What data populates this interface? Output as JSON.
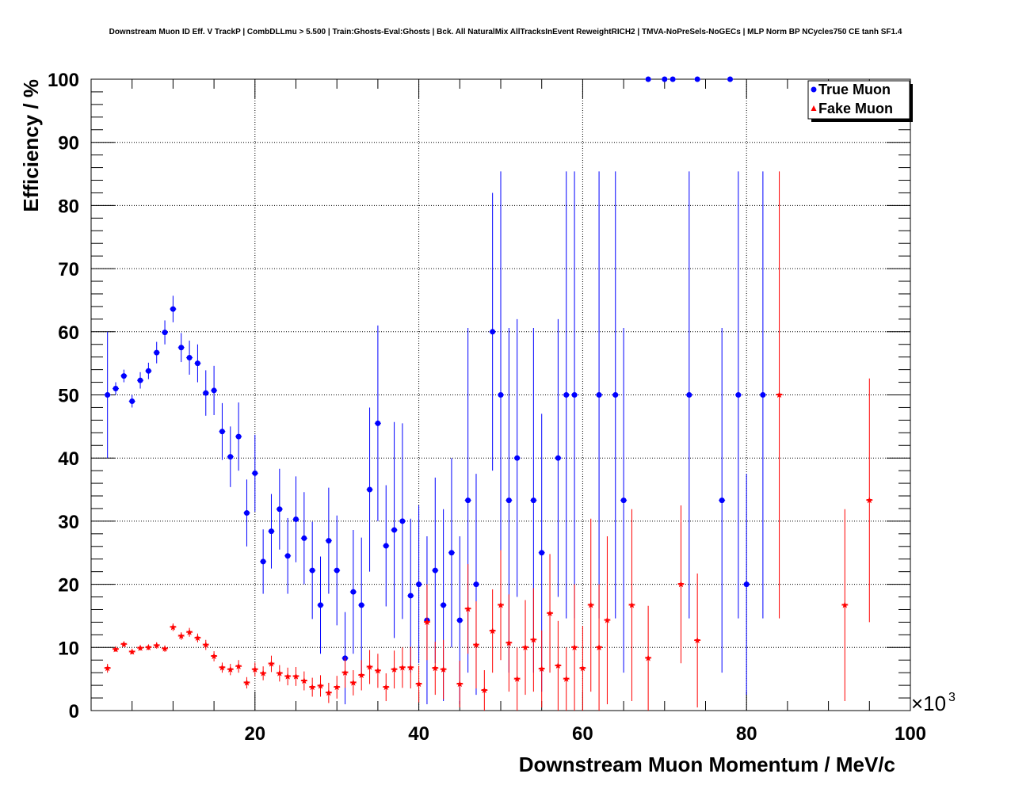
{
  "chart_data": {
    "type": "scatter",
    "title": "Downstream Muon ID Eff. V TrackP | CombDLLmu > 5.500 | Train:Ghosts-Eval:Ghosts | Bck. All NaturalMix AllTracksInEvent ReweightRICH2 | TMVA-NoPreSels-NoGECs | MLP Norm BP NCycles750 CE tanh SF1.4",
    "xlabel": "Downstream Muon Momentum / MeV/c",
    "ylabel": "Efficiency / %",
    "x_multiplier": "×10",
    "x_multiplier_exp": "3",
    "xlim": [
      0,
      100
    ],
    "ylim": [
      0,
      100
    ],
    "x_ticks": [
      "20",
      "40",
      "60",
      "80",
      "100"
    ],
    "y_ticks": [
      "0",
      "10",
      "20",
      "30",
      "40",
      "50",
      "60",
      "70",
      "80",
      "90",
      "100"
    ],
    "grid": true,
    "legend_position": "top-right",
    "series": [
      {
        "name": "True Muon",
        "color": "#0000ff",
        "marker": "circle",
        "points": [
          {
            "x": 2.0,
            "y": 50.0,
            "lo": 40.0,
            "hi": 60.0
          },
          {
            "x": 3.0,
            "y": 51.0,
            "lo": 50.0,
            "hi": 52.0
          },
          {
            "x": 4.0,
            "y": 53.0,
            "lo": 52.0,
            "hi": 54.0
          },
          {
            "x": 5.0,
            "y": 49.0,
            "lo": 48.0,
            "hi": 50.0
          },
          {
            "x": 6.0,
            "y": 52.3,
            "lo": 51.0,
            "hi": 53.6
          },
          {
            "x": 7.0,
            "y": 53.8,
            "lo": 52.5,
            "hi": 55.1
          },
          {
            "x": 8.0,
            "y": 56.7,
            "lo": 55.0,
            "hi": 58.4
          },
          {
            "x": 9.0,
            "y": 59.9,
            "lo": 58.0,
            "hi": 61.8
          },
          {
            "x": 10.0,
            "y": 63.6,
            "lo": 61.5,
            "hi": 65.7
          },
          {
            "x": 11.0,
            "y": 57.5,
            "lo": 55.2,
            "hi": 59.8
          },
          {
            "x": 12.0,
            "y": 55.9,
            "lo": 53.2,
            "hi": 58.6
          },
          {
            "x": 13.0,
            "y": 55.0,
            "lo": 52.0,
            "hi": 58.0
          },
          {
            "x": 14.0,
            "y": 50.3,
            "lo": 46.7,
            "hi": 53.9
          },
          {
            "x": 15.0,
            "y": 50.7,
            "lo": 46.8,
            "hi": 54.6
          },
          {
            "x": 16.0,
            "y": 44.2,
            "lo": 39.7,
            "hi": 48.7
          },
          {
            "x": 17.0,
            "y": 40.2,
            "lo": 35.4,
            "hi": 45.0
          },
          {
            "x": 18.0,
            "y": 43.4,
            "lo": 38.0,
            "hi": 48.8
          },
          {
            "x": 19.0,
            "y": 31.3,
            "lo": 26.0,
            "hi": 36.6
          },
          {
            "x": 20.0,
            "y": 37.6,
            "lo": 31.5,
            "hi": 43.7
          },
          {
            "x": 21.0,
            "y": 23.6,
            "lo": 18.5,
            "hi": 28.7
          },
          {
            "x": 22.0,
            "y": 28.4,
            "lo": 22.5,
            "hi": 34.3
          },
          {
            "x": 23.0,
            "y": 31.9,
            "lo": 25.5,
            "hi": 38.3
          },
          {
            "x": 24.0,
            "y": 24.5,
            "lo": 18.5,
            "hi": 30.5
          },
          {
            "x": 25.0,
            "y": 30.3,
            "lo": 23.5,
            "hi": 37.1
          },
          {
            "x": 26.0,
            "y": 27.3,
            "lo": 20.0,
            "hi": 34.6
          },
          {
            "x": 27.0,
            "y": 22.2,
            "lo": 14.5,
            "hi": 29.9
          },
          {
            "x": 28.0,
            "y": 16.7,
            "lo": 9.0,
            "hi": 24.4
          },
          {
            "x": 29.0,
            "y": 26.9,
            "lo": 18.5,
            "hi": 35.3
          },
          {
            "x": 30.0,
            "y": 22.2,
            "lo": 13.5,
            "hi": 30.9
          },
          {
            "x": 31.0,
            "y": 8.3,
            "lo": 1.0,
            "hi": 15.6
          },
          {
            "x": 32.0,
            "y": 18.8,
            "lo": 9.0,
            "hi": 28.6
          },
          {
            "x": 33.0,
            "y": 16.7,
            "lo": 6.0,
            "hi": 27.4
          },
          {
            "x": 34.0,
            "y": 35.0,
            "lo": 22.0,
            "hi": 48.0
          },
          {
            "x": 35.0,
            "y": 45.5,
            "lo": 30.0,
            "hi": 61.0
          },
          {
            "x": 36.0,
            "y": 26.1,
            "lo": 16.5,
            "hi": 35.7
          },
          {
            "x": 37.0,
            "y": 28.6,
            "lo": 11.5,
            "hi": 45.7
          },
          {
            "x": 38.0,
            "y": 30.0,
            "lo": 14.5,
            "hi": 45.5
          },
          {
            "x": 39.0,
            "y": 18.2,
            "lo": 6.0,
            "hi": 30.4
          },
          {
            "x": 40.0,
            "y": 20.0,
            "lo": 7.5,
            "hi": 32.5
          },
          {
            "x": 41.0,
            "y": 14.3,
            "lo": 1.0,
            "hi": 27.6
          },
          {
            "x": 42.0,
            "y": 22.2,
            "lo": 7.5,
            "hi": 36.9
          },
          {
            "x": 43.0,
            "y": 16.7,
            "lo": 1.5,
            "hi": 31.9
          },
          {
            "x": 44.0,
            "y": 25.0,
            "lo": 10.0,
            "hi": 40.0
          },
          {
            "x": 45.0,
            "y": 14.3,
            "lo": 1.0,
            "hi": 27.6
          },
          {
            "x": 46.0,
            "y": 33.3,
            "lo": 6.0,
            "hi": 60.6
          },
          {
            "x": 47.0,
            "y": 20.0,
            "lo": 2.5,
            "hi": 37.5
          },
          {
            "x": 49.0,
            "y": 60.0,
            "lo": 38.0,
            "hi": 82.0
          },
          {
            "x": 50.0,
            "y": 50.0,
            "lo": 14.6,
            "hi": 85.4
          },
          {
            "x": 51.0,
            "y": 33.3,
            "lo": 6.0,
            "hi": 60.6
          },
          {
            "x": 52.0,
            "y": 40.0,
            "lo": 18.0,
            "hi": 62.0
          },
          {
            "x": 54.0,
            "y": 33.3,
            "lo": 6.0,
            "hi": 60.6
          },
          {
            "x": 55.0,
            "y": 25.0,
            "lo": 3.0,
            "hi": 47.0
          },
          {
            "x": 57.0,
            "y": 40.0,
            "lo": 18.0,
            "hi": 62.0
          },
          {
            "x": 58.0,
            "y": 50.0,
            "lo": 14.6,
            "hi": 85.4
          },
          {
            "x": 59.0,
            "y": 50.0,
            "lo": 14.6,
            "hi": 85.4
          },
          {
            "x": 62.0,
            "y": 50.0,
            "lo": 14.6,
            "hi": 85.4
          },
          {
            "x": 64.0,
            "y": 50.0,
            "lo": 14.6,
            "hi": 85.4
          },
          {
            "x": 65.0,
            "y": 33.3,
            "lo": 6.0,
            "hi": 60.6
          },
          {
            "x": 68.0,
            "y": 100.0,
            "lo": 100.0,
            "hi": 100.0
          },
          {
            "x": 70.0,
            "y": 100.0,
            "lo": 100.0,
            "hi": 100.0
          },
          {
            "x": 71.0,
            "y": 100.0,
            "lo": 100.0,
            "hi": 100.0
          },
          {
            "x": 73.0,
            "y": 50.0,
            "lo": 14.6,
            "hi": 85.4
          },
          {
            "x": 74.0,
            "y": 100.0,
            "lo": 100.0,
            "hi": 100.0
          },
          {
            "x": 77.0,
            "y": 33.3,
            "lo": 6.0,
            "hi": 60.6
          },
          {
            "x": 78.0,
            "y": 100.0,
            "lo": 100.0,
            "hi": 100.0
          },
          {
            "x": 79.0,
            "y": 50.0,
            "lo": 14.6,
            "hi": 85.4
          },
          {
            "x": 80.0,
            "y": 20.0,
            "lo": 2.5,
            "hi": 37.5
          },
          {
            "x": 82.0,
            "y": 50.0,
            "lo": 14.6,
            "hi": 85.4
          }
        ]
      },
      {
        "name": "Fake Muon",
        "color": "#ff0000",
        "marker": "star",
        "points": [
          {
            "x": 2.0,
            "y": 6.7,
            "lo": 6.0,
            "hi": 7.4
          },
          {
            "x": 3.0,
            "y": 9.7,
            "lo": 9.3,
            "hi": 10.1
          },
          {
            "x": 4.0,
            "y": 10.5,
            "lo": 10.1,
            "hi": 10.9
          },
          {
            "x": 5.0,
            "y": 9.3,
            "lo": 8.9,
            "hi": 9.7
          },
          {
            "x": 6.0,
            "y": 9.9,
            "lo": 9.5,
            "hi": 10.3
          },
          {
            "x": 7.0,
            "y": 10.0,
            "lo": 9.6,
            "hi": 10.4
          },
          {
            "x": 8.0,
            "y": 10.3,
            "lo": 9.8,
            "hi": 10.8
          },
          {
            "x": 9.0,
            "y": 9.8,
            "lo": 9.3,
            "hi": 10.3
          },
          {
            "x": 10.0,
            "y": 13.2,
            "lo": 12.6,
            "hi": 13.8
          },
          {
            "x": 11.0,
            "y": 11.8,
            "lo": 11.2,
            "hi": 12.4
          },
          {
            "x": 12.0,
            "y": 12.4,
            "lo": 11.7,
            "hi": 13.1
          },
          {
            "x": 13.0,
            "y": 11.5,
            "lo": 10.8,
            "hi": 12.2
          },
          {
            "x": 14.0,
            "y": 10.4,
            "lo": 9.6,
            "hi": 11.2
          },
          {
            "x": 15.0,
            "y": 8.6,
            "lo": 7.8,
            "hi": 9.4
          },
          {
            "x": 16.0,
            "y": 6.8,
            "lo": 6.0,
            "hi": 7.6
          },
          {
            "x": 17.0,
            "y": 6.5,
            "lo": 5.6,
            "hi": 7.4
          },
          {
            "x": 18.0,
            "y": 7.0,
            "lo": 6.0,
            "hi": 8.0
          },
          {
            "x": 19.0,
            "y": 4.4,
            "lo": 3.5,
            "hi": 5.3
          },
          {
            "x": 20.0,
            "y": 6.5,
            "lo": 5.4,
            "hi": 7.6
          },
          {
            "x": 21.0,
            "y": 5.9,
            "lo": 4.8,
            "hi": 7.0
          },
          {
            "x": 22.0,
            "y": 7.4,
            "lo": 6.1,
            "hi": 8.7
          },
          {
            "x": 23.0,
            "y": 5.9,
            "lo": 4.6,
            "hi": 7.2
          },
          {
            "x": 24.0,
            "y": 5.4,
            "lo": 4.0,
            "hi": 6.8
          },
          {
            "x": 25.0,
            "y": 5.4,
            "lo": 3.9,
            "hi": 6.9
          },
          {
            "x": 26.0,
            "y": 4.7,
            "lo": 3.2,
            "hi": 6.2
          },
          {
            "x": 27.0,
            "y": 3.7,
            "lo": 2.2,
            "hi": 5.2
          },
          {
            "x": 28.0,
            "y": 3.9,
            "lo": 2.2,
            "hi": 5.6
          },
          {
            "x": 29.0,
            "y": 2.8,
            "lo": 1.2,
            "hi": 4.4
          },
          {
            "x": 30.0,
            "y": 3.7,
            "lo": 1.9,
            "hi": 5.5
          },
          {
            "x": 31.0,
            "y": 6.0,
            "lo": 3.6,
            "hi": 8.4
          },
          {
            "x": 32.0,
            "y": 4.4,
            "lo": 2.4,
            "hi": 6.4
          },
          {
            "x": 33.0,
            "y": 5.6,
            "lo": 3.2,
            "hi": 8.0
          },
          {
            "x": 34.0,
            "y": 6.9,
            "lo": 4.2,
            "hi": 9.6
          },
          {
            "x": 35.0,
            "y": 6.3,
            "lo": 3.6,
            "hi": 9.0
          },
          {
            "x": 36.0,
            "y": 3.7,
            "lo": 1.5,
            "hi": 5.9
          },
          {
            "x": 37.0,
            "y": 6.5,
            "lo": 3.5,
            "hi": 9.5
          },
          {
            "x": 38.0,
            "y": 6.8,
            "lo": 3.6,
            "hi": 10.0
          },
          {
            "x": 39.0,
            "y": 6.8,
            "lo": 3.5,
            "hi": 10.1
          },
          {
            "x": 40.0,
            "y": 4.2,
            "lo": 1.3,
            "hi": 7.1
          },
          {
            "x": 41.0,
            "y": 14.0,
            "lo": 8.0,
            "hi": 20.0
          },
          {
            "x": 42.0,
            "y": 6.7,
            "lo": 2.5,
            "hi": 10.9
          },
          {
            "x": 43.0,
            "y": 6.5,
            "lo": 1.8,
            "hi": 11.2
          },
          {
            "x": 45.0,
            "y": 4.2,
            "lo": 0.5,
            "hi": 7.9
          },
          {
            "x": 46.0,
            "y": 16.1,
            "lo": 9.0,
            "hi": 23.2
          },
          {
            "x": 47.0,
            "y": 10.4,
            "lo": 3.5,
            "hi": 17.3
          },
          {
            "x": 48.0,
            "y": 3.2,
            "lo": 0.0,
            "hi": 6.4
          },
          {
            "x": 49.0,
            "y": 12.6,
            "lo": 6.0,
            "hi": 19.2
          },
          {
            "x": 50.0,
            "y": 16.7,
            "lo": 8.0,
            "hi": 25.4
          },
          {
            "x": 51.0,
            "y": 10.7,
            "lo": 3.0,
            "hi": 18.4
          },
          {
            "x": 52.0,
            "y": 5.0,
            "lo": 0.0,
            "hi": 10.0
          },
          {
            "x": 53.0,
            "y": 10.0,
            "lo": 2.5,
            "hi": 17.5
          },
          {
            "x": 54.0,
            "y": 11.2,
            "lo": 3.0,
            "hi": 19.4
          },
          {
            "x": 55.0,
            "y": 6.6,
            "lo": 0.5,
            "hi": 12.7
          },
          {
            "x": 56.0,
            "y": 15.4,
            "lo": 6.0,
            "hi": 24.8
          },
          {
            "x": 57.0,
            "y": 7.1,
            "lo": 0.0,
            "hi": 14.2
          },
          {
            "x": 58.0,
            "y": 5.0,
            "lo": 0.0,
            "hi": 10.0
          },
          {
            "x": 59.0,
            "y": 10.0,
            "lo": 0.0,
            "hi": 20.0
          },
          {
            "x": 60.0,
            "y": 6.7,
            "lo": 0.0,
            "hi": 13.4
          },
          {
            "x": 61.0,
            "y": 16.7,
            "lo": 3.0,
            "hi": 30.4
          },
          {
            "x": 62.0,
            "y": 10.0,
            "lo": 0.0,
            "hi": 20.0
          },
          {
            "x": 63.0,
            "y": 14.3,
            "lo": 1.0,
            "hi": 27.6
          },
          {
            "x": 66.0,
            "y": 16.7,
            "lo": 1.5,
            "hi": 31.9
          },
          {
            "x": 68.0,
            "y": 8.3,
            "lo": 0.0,
            "hi": 16.6
          },
          {
            "x": 72.0,
            "y": 20.0,
            "lo": 7.5,
            "hi": 32.5
          },
          {
            "x": 74.0,
            "y": 11.1,
            "lo": 0.5,
            "hi": 21.7
          },
          {
            "x": 84.0,
            "y": 50.0,
            "lo": 14.6,
            "hi": 85.4
          },
          {
            "x": 92.0,
            "y": 16.7,
            "lo": 1.5,
            "hi": 31.9
          },
          {
            "x": 95.0,
            "y": 33.3,
            "lo": 14.0,
            "hi": 52.6
          }
        ]
      }
    ]
  }
}
